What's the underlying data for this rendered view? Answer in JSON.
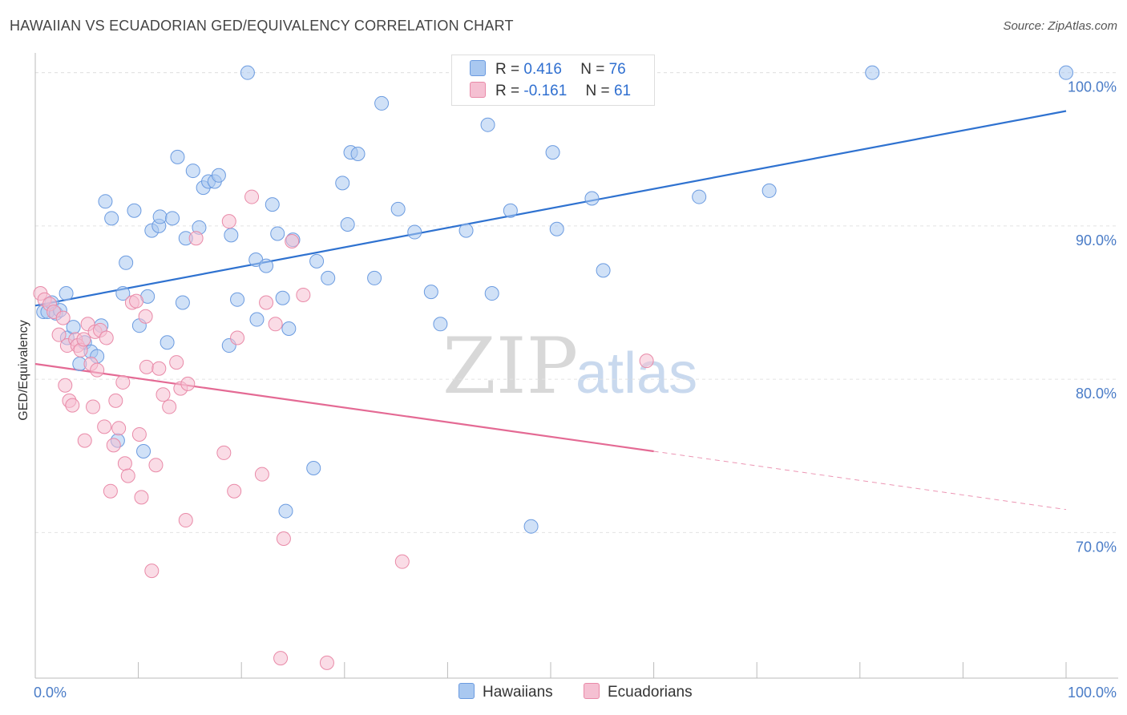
{
  "title": "HAWAIIAN VS ECUADORIAN GED/EQUIVALENCY CORRELATION CHART",
  "source": "Source: ZipAtlas.com",
  "legend": {
    "rows": [
      {
        "r_label": "R =",
        "r_value": "0.416",
        "n_label": "N =",
        "n_value": "76",
        "color": "#a9c8f0",
        "border": "#6b9be0"
      },
      {
        "r_label": "R =",
        "r_value": "-0.161",
        "n_label": "N =",
        "n_value": "61",
        "color": "#f5c0d2",
        "border": "#e98aa8"
      }
    ]
  },
  "bottom_legend": [
    {
      "label": "Hawaiians",
      "color": "#a9c8f0",
      "border": "#6b9be0"
    },
    {
      "label": "Ecuadorians",
      "color": "#f5c0d2",
      "border": "#e98aa8"
    }
  ],
  "watermark": {
    "zip": "ZIP",
    "atlas": "atlas"
  },
  "chart_data": {
    "type": "scatter",
    "title": "HAWAIIAN VS ECUADORIAN GED/EQUIVALENCY CORRELATION CHART",
    "xlabel": "",
    "ylabel": "GED/Equivalency",
    "xlim": [
      0,
      100
    ],
    "ylim": [
      60.5,
      101.5
    ],
    "x_tick_labels": [
      "0.0%",
      "100.0%"
    ],
    "y_ticks": [
      70,
      80,
      90,
      100
    ],
    "y_tick_labels": [
      "70.0%",
      "80.0%",
      "90.0%",
      "100.0%"
    ],
    "grid": true,
    "series": [
      {
        "name": "Hawaiians",
        "color": "#a9c8f0",
        "stroke": "#6b9be0",
        "trend": {
          "x": [
            0,
            100
          ],
          "y": [
            84.8,
            97.5
          ],
          "color": "#2f72d0"
        },
        "points": [
          [
            0.8,
            84.4
          ],
          [
            1.2,
            84.4
          ],
          [
            1.6,
            85.0
          ],
          [
            2.0,
            84.3
          ],
          [
            2.4,
            84.5
          ],
          [
            3.0,
            85.6
          ],
          [
            3.1,
            82.7
          ],
          [
            3.7,
            83.4
          ],
          [
            4.3,
            81.0
          ],
          [
            4.8,
            82.4
          ],
          [
            5.4,
            81.8
          ],
          [
            6.0,
            81.5
          ],
          [
            6.4,
            83.5
          ],
          [
            6.8,
            91.6
          ],
          [
            7.4,
            90.5
          ],
          [
            8.0,
            76.0
          ],
          [
            8.5,
            85.6
          ],
          [
            8.8,
            87.6
          ],
          [
            9.6,
            91.0
          ],
          [
            10.1,
            83.5
          ],
          [
            10.5,
            75.3
          ],
          [
            10.9,
            85.4
          ],
          [
            11.3,
            89.7
          ],
          [
            12.0,
            90.0
          ],
          [
            12.1,
            90.6
          ],
          [
            12.8,
            82.4
          ],
          [
            13.3,
            90.5
          ],
          [
            13.8,
            94.5
          ],
          [
            14.3,
            85.0
          ],
          [
            14.6,
            89.2
          ],
          [
            15.3,
            93.6
          ],
          [
            15.9,
            89.9
          ],
          [
            16.3,
            92.5
          ],
          [
            16.8,
            92.9
          ],
          [
            17.4,
            92.9
          ],
          [
            17.8,
            93.3
          ],
          [
            18.8,
            82.2
          ],
          [
            19.0,
            89.4
          ],
          [
            19.6,
            85.2
          ],
          [
            20.6,
            100.0
          ],
          [
            21.4,
            87.8
          ],
          [
            21.5,
            83.9
          ],
          [
            22.4,
            87.4
          ],
          [
            23.0,
            91.4
          ],
          [
            23.5,
            89.5
          ],
          [
            24.0,
            85.3
          ],
          [
            24.6,
            83.3
          ],
          [
            25.0,
            89.1
          ],
          [
            27.0,
            74.2
          ],
          [
            27.3,
            87.7
          ],
          [
            28.4,
            86.6
          ],
          [
            29.8,
            92.8
          ],
          [
            30.3,
            90.1
          ],
          [
            30.6,
            94.8
          ],
          [
            31.3,
            94.7
          ],
          [
            32.9,
            86.6
          ],
          [
            33.6,
            98.0
          ],
          [
            35.2,
            91.1
          ],
          [
            36.8,
            89.6
          ],
          [
            38.4,
            85.7
          ],
          [
            39.3,
            83.6
          ],
          [
            41.8,
            89.7
          ],
          [
            43.9,
            96.6
          ],
          [
            44.3,
            85.6
          ],
          [
            46.1,
            91.0
          ],
          [
            48.1,
            70.4
          ],
          [
            50.0,
            100.0
          ],
          [
            50.2,
            94.8
          ],
          [
            50.6,
            89.8
          ],
          [
            54.0,
            91.8
          ],
          [
            55.1,
            87.1
          ],
          [
            64.4,
            91.9
          ],
          [
            71.2,
            92.3
          ],
          [
            81.2,
            100.0
          ],
          [
            100.0,
            100.0
          ],
          [
            24.3,
            71.4
          ]
        ]
      },
      {
        "name": "Ecuadorians",
        "color": "#f5c0d2",
        "stroke": "#e98aa8",
        "trend": {
          "x": [
            0,
            60
          ],
          "y": [
            81.0,
            75.3
          ],
          "color": "#e46a94",
          "dashed_to": [
            100,
            71.5
          ]
        },
        "points": [
          [
            0.5,
            85.6
          ],
          [
            0.9,
            85.2
          ],
          [
            1.4,
            84.9
          ],
          [
            1.8,
            84.4
          ],
          [
            2.3,
            82.9
          ],
          [
            2.7,
            84.0
          ],
          [
            2.9,
            79.6
          ],
          [
            3.1,
            82.2
          ],
          [
            3.3,
            78.6
          ],
          [
            3.6,
            78.3
          ],
          [
            3.9,
            82.6
          ],
          [
            4.1,
            82.2
          ],
          [
            4.4,
            81.9
          ],
          [
            4.7,
            82.6
          ],
          [
            4.8,
            76.0
          ],
          [
            5.1,
            83.6
          ],
          [
            5.4,
            81.0
          ],
          [
            5.6,
            78.2
          ],
          [
            5.8,
            83.1
          ],
          [
            6.0,
            80.6
          ],
          [
            6.3,
            83.2
          ],
          [
            6.7,
            76.9
          ],
          [
            6.9,
            82.7
          ],
          [
            7.3,
            72.7
          ],
          [
            7.6,
            75.7
          ],
          [
            7.8,
            78.6
          ],
          [
            8.1,
            76.8
          ],
          [
            8.5,
            79.8
          ],
          [
            8.7,
            74.5
          ],
          [
            9.0,
            73.7
          ],
          [
            9.4,
            85.0
          ],
          [
            9.8,
            85.1
          ],
          [
            10.1,
            76.4
          ],
          [
            10.3,
            72.3
          ],
          [
            10.7,
            84.1
          ],
          [
            10.8,
            80.8
          ],
          [
            11.3,
            67.5
          ],
          [
            11.7,
            74.4
          ],
          [
            12.0,
            80.7
          ],
          [
            12.4,
            79.0
          ],
          [
            13.0,
            78.2
          ],
          [
            13.7,
            81.1
          ],
          [
            14.1,
            79.4
          ],
          [
            14.6,
            70.8
          ],
          [
            14.8,
            79.7
          ],
          [
            15.6,
            89.2
          ],
          [
            18.3,
            75.2
          ],
          [
            18.8,
            90.3
          ],
          [
            19.3,
            72.7
          ],
          [
            19.6,
            82.7
          ],
          [
            21.0,
            91.9
          ],
          [
            22.0,
            73.8
          ],
          [
            22.4,
            85.0
          ],
          [
            23.3,
            83.6
          ],
          [
            24.1,
            69.6
          ],
          [
            24.9,
            89.0
          ],
          [
            26.0,
            85.5
          ],
          [
            28.3,
            61.5
          ],
          [
            35.6,
            68.1
          ],
          [
            59.3,
            81.2
          ],
          [
            23.8,
            61.8
          ]
        ]
      }
    ]
  }
}
